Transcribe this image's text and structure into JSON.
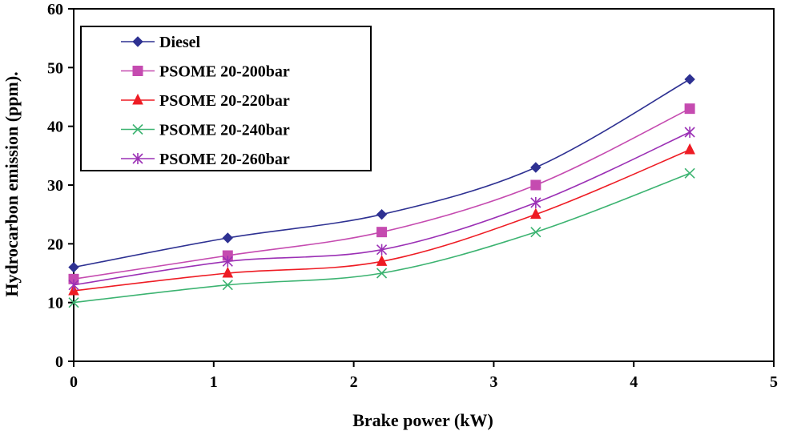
{
  "chart_data": {
    "type": "line",
    "title": "",
    "xlabel": "Brake power (kW)",
    "ylabel": "Hydrocarbon emission  (ppm).",
    "xlim": [
      0,
      5
    ],
    "ylim": [
      0,
      60
    ],
    "xticks": [
      "0",
      "1",
      "2",
      "3",
      "4",
      "5"
    ],
    "yticks": [
      "0",
      "10",
      "20",
      "30",
      "40",
      "50",
      "60"
    ],
    "grid": false,
    "legend_position": "top-left",
    "x": [
      0,
      1.1,
      2.2,
      3.3,
      4.4
    ],
    "series": [
      {
        "name": "Diesel",
        "color": "#2e3192",
        "marker": "diamond",
        "values": [
          16,
          21,
          25,
          33,
          48
        ]
      },
      {
        "name": "PSOME 20-200bar",
        "color": "#c54bb0",
        "marker": "square",
        "values": [
          14,
          18,
          22,
          30,
          43
        ]
      },
      {
        "name": "PSOME 20-220bar",
        "color": "#ee1c24",
        "marker": "triangle",
        "values": [
          12,
          15,
          17,
          25,
          36
        ]
      },
      {
        "name": "PSOME 20-240bar",
        "color": "#3cb371",
        "marker": "x",
        "values": [
          10,
          13,
          15,
          22,
          32
        ]
      },
      {
        "name": "PSOME 20-260bar",
        "color": "#9b30b5",
        "marker": "star",
        "values": [
          13,
          17,
          19,
          27,
          39
        ]
      }
    ]
  }
}
